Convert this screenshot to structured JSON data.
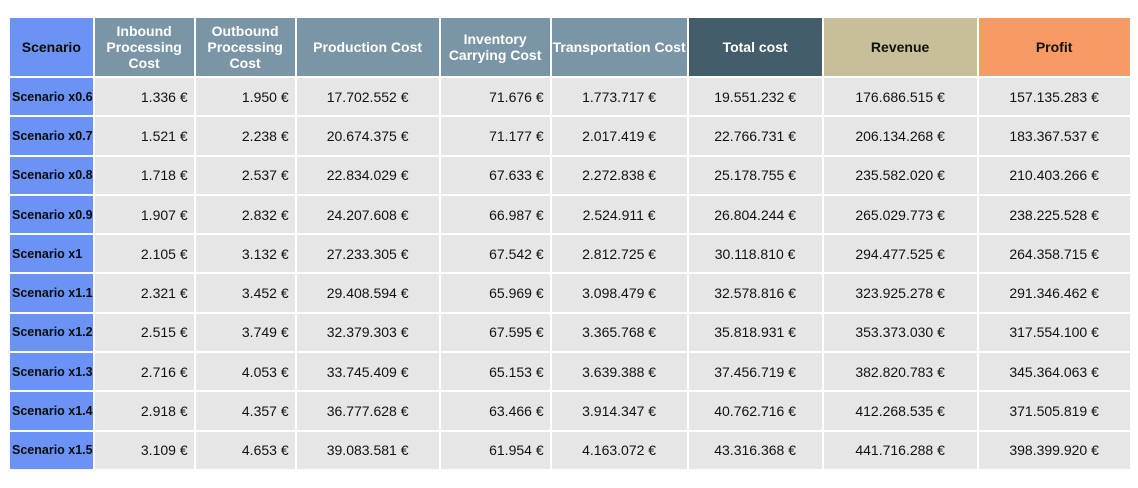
{
  "table": {
    "headers": {
      "scenario": "Scenario",
      "inbound": "Inbound Processing Cost",
      "outbound": "Outbound Processing Cost",
      "production": "Production Cost",
      "inventory": "Inventory Carrying Cost",
      "transportation": "Transportation Cost",
      "total": "Total cost",
      "revenue": "Revenue",
      "profit": "Profit"
    },
    "header_colors": {
      "scenario": "#6b93f5",
      "cost_columns": "#7a96a6",
      "total": "#445d6b",
      "revenue": "#c7bf9a",
      "profit": "#f89a63"
    },
    "rows": [
      [
        "Scenario x0.6",
        "1.336 €",
        "1.950 €",
        "17.702.552 €",
        "71.676 €",
        "1.773.717 €",
        "19.551.232 €",
        "176.686.515 €",
        "157.135.283 €"
      ],
      [
        "Scenario x0.7",
        "1.521 €",
        "2.238 €",
        "20.674.375 €",
        "71.177 €",
        "2.017.419 €",
        "22.766.731 €",
        "206.134.268 €",
        "183.367.537 €"
      ],
      [
        "Scenario x0.8",
        "1.718 €",
        "2.537 €",
        "22.834.029 €",
        "67.633 €",
        "2.272.838 €",
        "25.178.755 €",
        "235.582.020 €",
        "210.403.266 €"
      ],
      [
        "Scenario x0.9",
        "1.907 €",
        "2.832 €",
        "24.207.608 €",
        "66.987 €",
        "2.524.911 €",
        "26.804.244 €",
        "265.029.773 €",
        "238.225.528 €"
      ],
      [
        "Scenario x1",
        "2.105 €",
        "3.132 €",
        "27.233.305 €",
        "67.542 €",
        "2.812.725 €",
        "30.118.810 €",
        "294.477.525 €",
        "264.358.715 €"
      ],
      [
        "Scenario x1.1",
        "2.321 €",
        "3.452 €",
        "29.408.594 €",
        "65.969 €",
        "3.098.479 €",
        "32.578.816 €",
        "323.925.278 €",
        "291.346.462 €"
      ],
      [
        "Scenario x1.2",
        "2.515 €",
        "3.749 €",
        "32.379.303 €",
        "67.595 €",
        "3.365.768 €",
        "35.818.931 €",
        "353.373.030 €",
        "317.554.100 €"
      ],
      [
        "Scenario x1.3",
        "2.716 €",
        "4.053 €",
        "33.745.409 €",
        "65.153 €",
        "3.639.388 €",
        "37.456.719 €",
        "382.820.783 €",
        "345.364.063 €"
      ],
      [
        "Scenario x1.4",
        "2.918 €",
        "4.357 €",
        "36.777.628 €",
        "63.466 €",
        "3.914.347 €",
        "40.762.716 €",
        "412.268.535 €",
        "371.505.819 €"
      ],
      [
        "Scenario x1.5",
        "3.109 €",
        "4.653 €",
        "39.083.581 €",
        "61.954 €",
        "4.163.072 €",
        "43.316.368 €",
        "441.716.288 €",
        "398.399.920 €"
      ]
    ]
  }
}
